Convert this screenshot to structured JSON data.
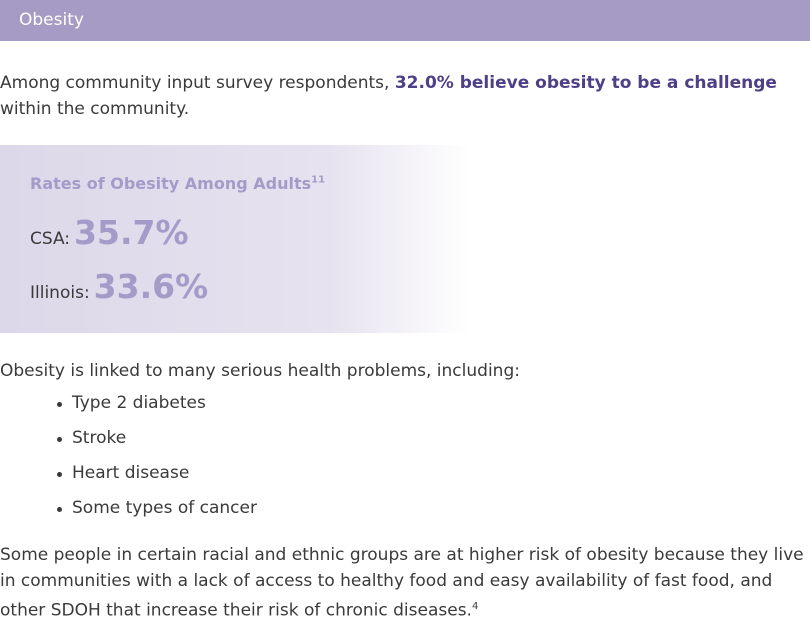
{
  "header": {
    "title": "Obesity"
  },
  "intro": {
    "before": "Among community input survey respondents, ",
    "highlight": "32.0% believe obesity to be a challenge",
    "after": " within the community."
  },
  "stat_box": {
    "title": "Rates of Obesity Among Adults",
    "title_ref": "11",
    "rows": [
      {
        "label": "CSA:",
        "value": "35.7%"
      },
      {
        "label": "Illinois:",
        "value": "33.6%"
      }
    ]
  },
  "list_intro": "Obesity is linked to many serious health problems, including:",
  "list": [
    "Type 2 diabetes",
    "Stroke",
    "Heart disease",
    "Some types of cancer"
  ],
  "closing": {
    "text": "Some people in certain racial and ethnic groups are at higher risk of obesity because they live in communities with a lack of access to healthy food and easy availability of fast food, and other SDOH that increase their risk of chronic diseases.",
    "ref": "4"
  }
}
